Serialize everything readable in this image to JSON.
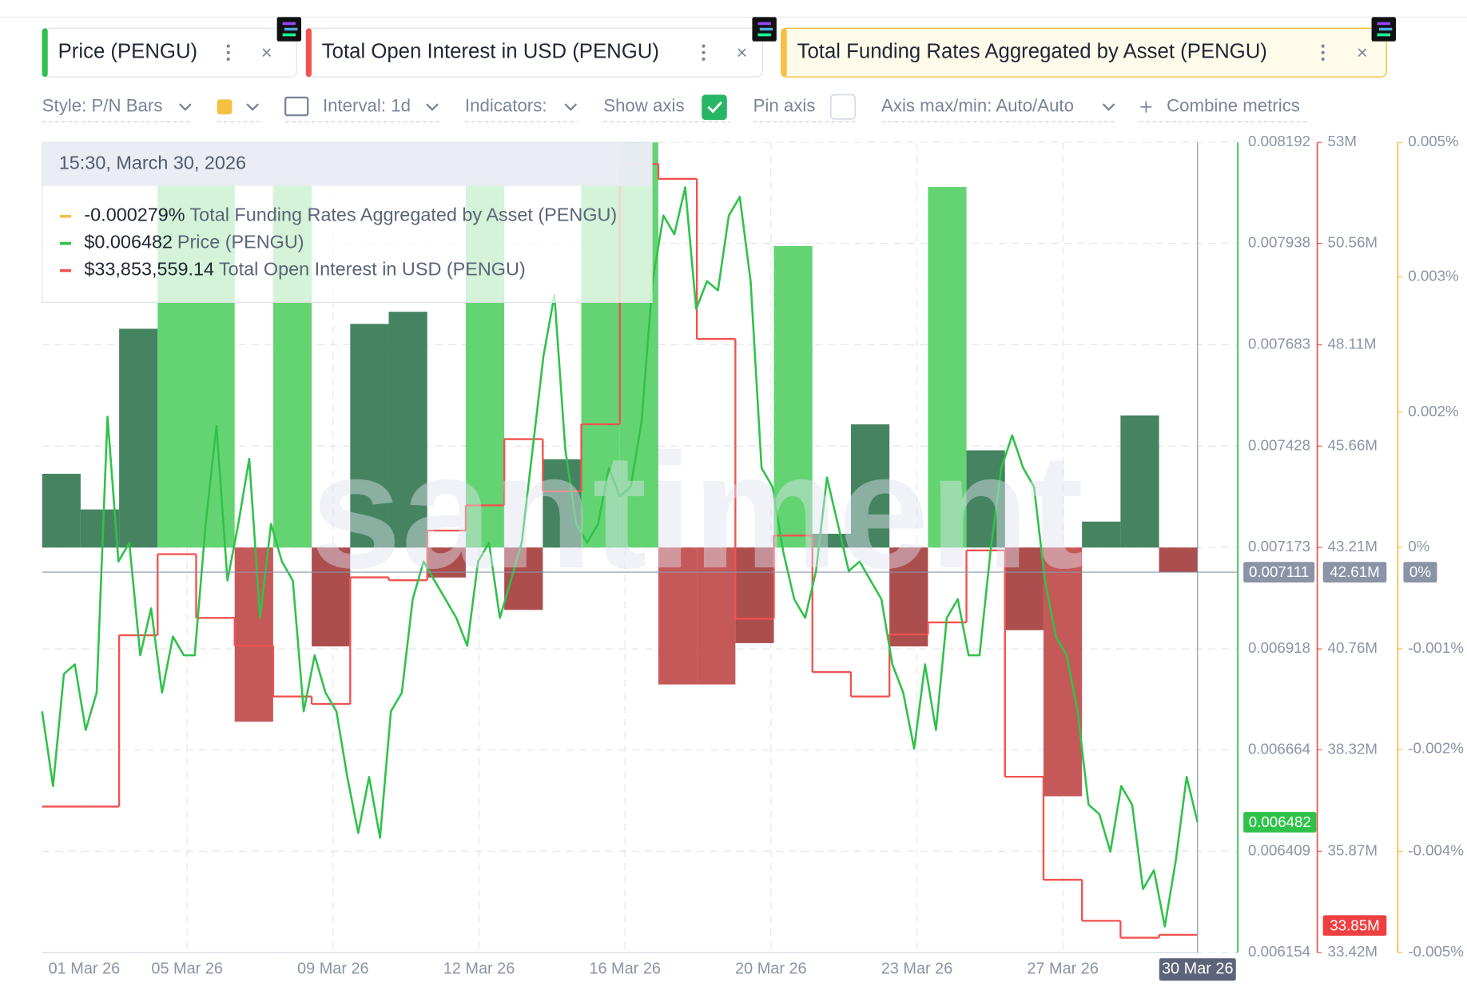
{
  "toolbar": {
    "style": "Style: P/N Bars",
    "interval": "Interval: 1d",
    "indicators": "Indicators:",
    "show_axis": "Show axis",
    "pin_axis": "Pin axis",
    "axis_range": "Axis max/min: Auto/Auto",
    "combine": "Combine metrics"
  },
  "tooltip": {
    "title": "15:30, March 30, 2026",
    "values": [
      "-0.000279%",
      "$0.006482",
      "$33,853,559.14"
    ]
  },
  "watermark": "santiment",
  "chart_data": {
    "type": "combo",
    "x_tick_labels": [
      "01 Mar 26",
      "05 Mar 26",
      "09 Mar 26",
      "12 Mar 26",
      "16 Mar 26",
      "20 Mar 26",
      "23 Mar 26",
      "27 Mar 26",
      "30 Mar 26"
    ],
    "series": [
      {
        "name": "Price (PENGU)",
        "type": "line",
        "color": "#2fc24a",
        "values": [
          0.006761,
          0.006573,
          0.006855,
          0.006879,
          0.006714,
          0.006808,
          0.007502,
          0.007138,
          0.007185,
          0.006902,
          0.00702,
          0.006808,
          0.006949,
          0.006902,
          0.006902,
          0.007232,
          0.007479,
          0.00709,
          0.007232,
          0.007396,
          0.006996,
          0.007232,
          0.007138,
          0.00709,
          0.006761,
          0.006902,
          0.006808,
          0.006761,
          0.006596,
          0.006455,
          0.006596,
          0.006443,
          0.006761,
          0.006808,
          0.007043,
          0.007138,
          0.00709,
          0.007043,
          0.006996,
          0.006926,
          0.007138,
          0.007185,
          0.006996,
          0.00709,
          0.007185,
          0.00742,
          0.007655,
          0.007808,
          0.00742,
          0.007232,
          0.007185,
          0.007232,
          0.007373,
          0.007302,
          0.007326,
          0.007491,
          0.007843,
          0.008008,
          0.007961,
          0.008079,
          0.007773,
          0.007843,
          0.00782,
          0.008008,
          0.008055,
          0.007843,
          0.007373,
          0.007326,
          0.007161,
          0.007043,
          0.006996,
          0.007114,
          0.007349,
          0.007232,
          0.007114,
          0.007138,
          0.00709,
          0.007043,
          0.006879,
          0.006808,
          0.006667,
          0.006879,
          0.006714,
          0.006996,
          0.007043,
          0.006902,
          0.006902,
          0.007161,
          0.007373,
          0.007455,
          0.007373,
          0.007326,
          0.00709,
          0.006949,
          0.006902,
          0.006761,
          0.006526,
          0.006502,
          0.006408,
          0.006573,
          0.006526,
          0.006314,
          0.006361,
          0.00622,
          0.006385,
          0.006596,
          0.006482
        ]
      },
      {
        "name": "Total Open Interest in USD (PENGU)",
        "type": "step",
        "axis": "y2",
        "color": "#f0524f",
        "values": [
          36950000,
          36950000,
          41090000,
          43050000,
          41510000,
          40840000,
          39610000,
          39430000,
          42490000,
          42420000,
          43620000,
          44230000,
          45830000,
          44570000,
          46190000,
          52480000,
          52120000,
          48250000,
          41490000,
          43500000,
          40200000,
          39610000,
          41110000,
          41400000,
          43140000,
          37670000,
          35180000,
          34190000,
          33780000,
          33850000
        ]
      },
      {
        "name": "Total Funding Rates Aggregated by Asset (PENGU)",
        "type": "bar",
        "axis": "y3",
        "color": "#f5c043",
        "values": [
          0.00091,
          0.00047,
          0.0027,
          0.0045,
          0.0045,
          -0.00215,
          0.0045,
          -0.00122,
          0.00276,
          0.00291,
          -0.00037,
          0.0045,
          -0.00077,
          0.00109,
          0.0045,
          0.005,
          -0.00169,
          -0.00169,
          -0.00118,
          0.00372,
          0.00017,
          0.00152,
          -0.00122,
          0.00445,
          0.0012,
          -0.00102,
          -0.00307,
          0.00032,
          0.00163,
          -0.0003
        ],
        "colors": [
          "#3c7d58",
          "#3c7d58",
          "#3c7d58",
          "#5cd26b",
          "#5cd26b",
          "#c25050",
          "#5cd26b",
          "#a84444",
          "#3c7d58",
          "#3c7d58",
          "#a84444",
          "#5cd26b",
          "#a84444",
          "#3c7d58",
          "#5cd26b",
          "#5cd26b",
          "#c25050",
          "#c25050",
          "#a84444",
          "#5cd26b",
          "#3c7d58",
          "#3c7d58",
          "#a84444",
          "#5cd26b",
          "#3c7d58",
          "#a84444",
          "#c25050",
          "#3c7d58",
          "#3c7d58",
          "#a84444"
        ]
      }
    ],
    "ylim": [
      0.006154,
      0.008192
    ],
    "yticks": [
      0.008192,
      0.007938,
      0.007683,
      0.007428,
      0.007173,
      0.006918,
      0.006664,
      0.006409,
      0.006154
    ],
    "y2lim": [
      33420000,
      53000000
    ],
    "y2ticks": [
      {
        "value": 53000000,
        "label": "53M"
      },
      {
        "value": 50560000,
        "label": "50.56M"
      },
      {
        "value": 48110000,
        "label": "48.11M"
      },
      {
        "value": 45660000,
        "label": "45.66M"
      },
      {
        "value": 43210000,
        "label": "43.21M"
      },
      {
        "value": 40760000,
        "label": "40.76M"
      },
      {
        "value": 38320000,
        "label": "38.32M"
      },
      {
        "value": 35870000,
        "label": "35.87M"
      },
      {
        "value": 33420000,
        "label": "33.42M"
      }
    ],
    "y3lim": [
      -0.005,
      0.005
    ],
    "y3ticks": [
      {
        "value": 0.005,
        "label": "0.005%"
      },
      {
        "value": 0.00334,
        "label": "0.003%"
      },
      {
        "value": 0.00167,
        "label": "0.002%"
      },
      {
        "value": 0,
        "label": "0%"
      },
      {
        "value": -0.00125,
        "label": "-0.001%"
      },
      {
        "value": -0.00249,
        "label": "-0.002%"
      },
      {
        "value": -0.00375,
        "label": "-0.004%"
      },
      {
        "value": -0.005,
        "label": "-0.005%"
      }
    ],
    "grid": true,
    "crosshair": {
      "y": 0.007111,
      "y2": {
        "value": 42610000,
        "label": "42.61M"
      },
      "y3": {
        "value": 0,
        "label": "0%"
      }
    },
    "last_values": {
      "y": 0.006482,
      "y2": {
        "value": 33850000,
        "label": "33.85M"
      }
    }
  }
}
